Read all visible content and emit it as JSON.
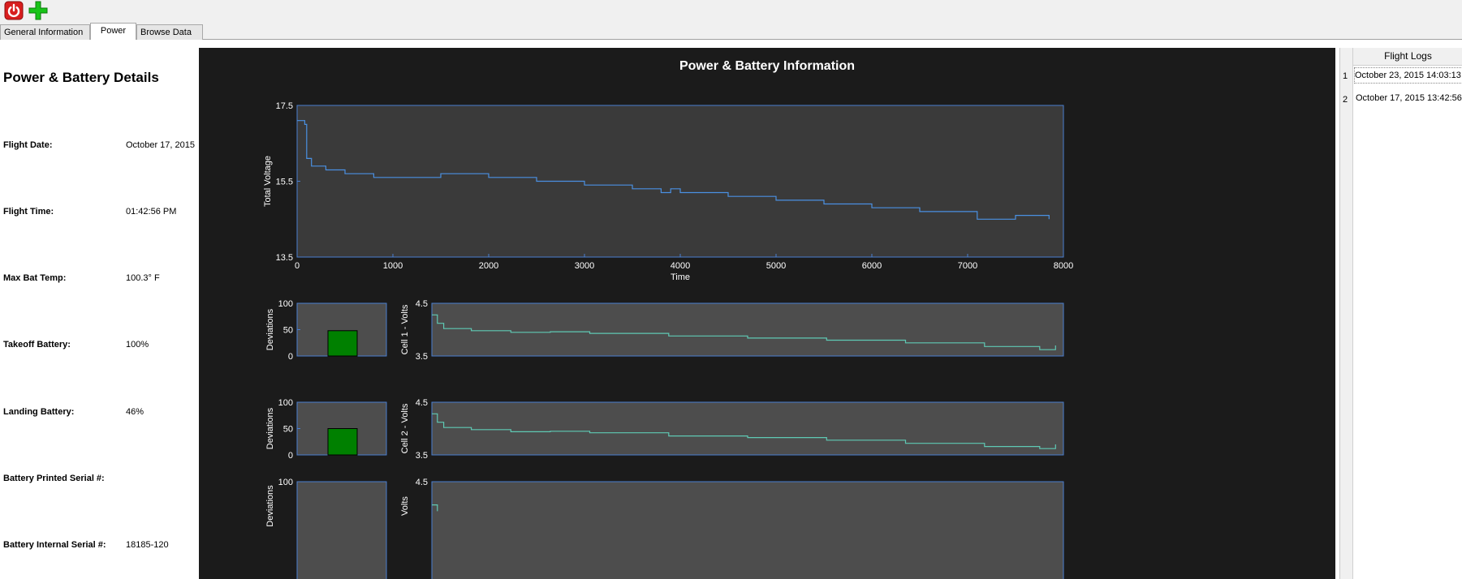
{
  "toolbar": {
    "power_icon": "power-icon",
    "add_icon": "add-icon",
    "power_color": "#d81e1e",
    "add_color": "#18c418"
  },
  "tabs": [
    {
      "label": "General Information"
    },
    {
      "label": "Power"
    },
    {
      "label": "Browse Data"
    }
  ],
  "details": {
    "title": "Power & Battery Details",
    "rows": [
      {
        "label": "Flight Date:",
        "value": "October 17, 2015"
      },
      {
        "label": "Flight Time:",
        "value": "01:42:56 PM"
      },
      {
        "label": "Max Bat Temp:",
        "value": "100.3° F"
      },
      {
        "label": "Takeoff Battery:",
        "value": "100%"
      },
      {
        "label": "Landing Battery:",
        "value": "46%"
      },
      {
        "label": "Battery Printed Serial #:",
        "value": ""
      },
      {
        "label": "Battery Internal Serial #:",
        "value": "18185-120"
      }
    ]
  },
  "plot": {
    "title": "Power & Battery Information"
  },
  "flight_logs": {
    "header": "Flight Logs",
    "rows": [
      {
        "num": "1",
        "date": "October 23, 2015 14:03:13"
      },
      {
        "num": "2",
        "date": "October 17, 2015 13:42:56"
      }
    ]
  },
  "chart_data": [
    {
      "type": "line",
      "xlabel": "Time",
      "ylabel": "Total Voltage",
      "xlim": [
        0,
        8000
      ],
      "ylim": [
        13.5,
        17.5
      ],
      "xticks": [
        "0",
        "1000",
        "2000",
        "3000",
        "4000",
        "5000",
        "6000",
        "7000",
        "8000"
      ],
      "yticks": [
        "13.5",
        "15.5",
        "17.5"
      ],
      "line_color": "#4a90e2",
      "x": [
        0,
        80,
        100,
        150,
        300,
        500,
        800,
        1000,
        1200,
        1500,
        1700,
        2000,
        2500,
        3000,
        3500,
        3800,
        3900,
        4000,
        4500,
        5000,
        5500,
        6000,
        6500,
        7000,
        7100,
        7500,
        7850
      ],
      "y": [
        17.1,
        17.0,
        16.1,
        15.9,
        15.8,
        15.7,
        15.6,
        15.6,
        15.6,
        15.7,
        15.7,
        15.6,
        15.5,
        15.4,
        15.3,
        15.2,
        15.3,
        15.2,
        15.1,
        15.0,
        14.9,
        14.8,
        14.7,
        14.7,
        14.5,
        14.6,
        14.5
      ]
    },
    {
      "type": "bar",
      "ylabel": "Deviations",
      "ylim": [
        0,
        100
      ],
      "yticks": [
        "0",
        "50",
        "100"
      ],
      "values": [
        48
      ],
      "bar_color": "#008000"
    },
    {
      "type": "line",
      "ylabel": "Cell 1 - Volts",
      "ylim": [
        3.5,
        4.5
      ],
      "yticks": [
        "3.5",
        "4.5"
      ],
      "line_color": "#5fc9b4",
      "x": [
        0,
        70,
        150,
        500,
        1000,
        1500,
        2000,
        3000,
        4000,
        5000,
        6000,
        7000,
        7700,
        7900
      ],
      "y": [
        4.28,
        4.12,
        4.02,
        3.98,
        3.95,
        3.96,
        3.93,
        3.88,
        3.84,
        3.8,
        3.75,
        3.68,
        3.62,
        3.7
      ]
    },
    {
      "type": "bar",
      "ylabel": "Deviations",
      "ylim": [
        0,
        100
      ],
      "yticks": [
        "0",
        "50",
        "100"
      ],
      "values": [
        50
      ],
      "bar_color": "#008000"
    },
    {
      "type": "line",
      "ylabel": "Cell 2 - Volts",
      "ylim": [
        3.5,
        4.5
      ],
      "yticks": [
        "3.5",
        "4.5"
      ],
      "line_color": "#5fc9b4",
      "x": [
        0,
        70,
        150,
        500,
        1000,
        1500,
        2000,
        3000,
        4000,
        5000,
        6000,
        7000,
        7700,
        7900
      ],
      "y": [
        4.28,
        4.12,
        4.02,
        3.98,
        3.94,
        3.95,
        3.92,
        3.86,
        3.83,
        3.78,
        3.72,
        3.66,
        3.62,
        3.7
      ]
    },
    {
      "type": "bar",
      "ylabel": "Deviations",
      "ylim": [
        0,
        100
      ],
      "yticks": [
        "100"
      ],
      "values": []
    },
    {
      "type": "line",
      "ylabel": "Volts",
      "ylim": [
        3.5,
        4.5
      ],
      "yticks": [
        "4.5"
      ],
      "line_color": "#5fc9b4",
      "x": [
        0,
        70
      ],
      "y": [
        4.28,
        4.22
      ]
    }
  ]
}
